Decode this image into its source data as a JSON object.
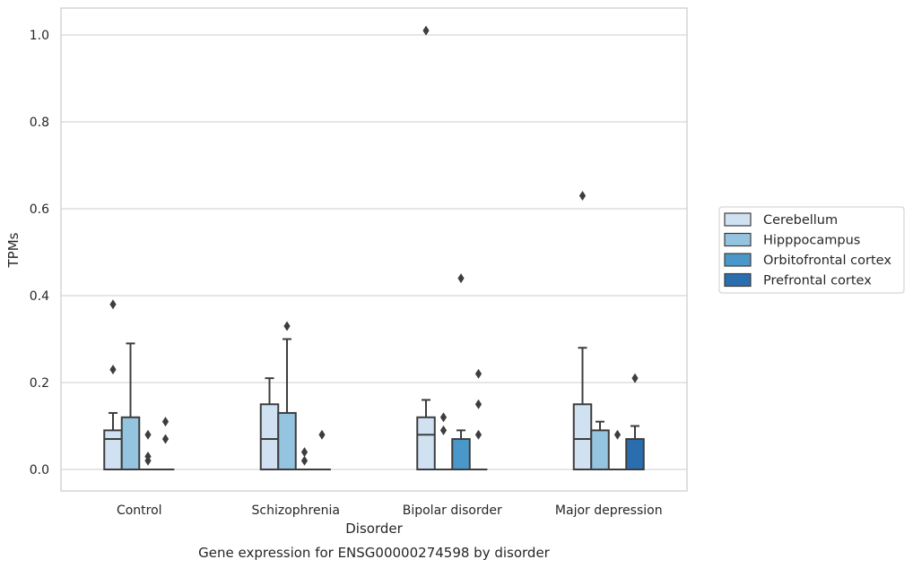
{
  "chart_data": {
    "type": "box",
    "title": "Gene expression for ENSG00000274598 by disorder",
    "xlabel": "Disorder",
    "ylabel": "TPMs",
    "ylim": [
      -0.05,
      1.06
    ],
    "yticks": [
      "0.0",
      "0.2",
      "0.4",
      "0.6",
      "0.8",
      "1.0"
    ],
    "grid": true,
    "legend_position": "right",
    "categories": [
      "Control",
      "Schizophrenia",
      "Bipolar disorder",
      "Major depression"
    ],
    "series": [
      {
        "name": "Cerebellum",
        "color": "#d0e1f2",
        "boxes": [
          {
            "q1": 0.0,
            "median": 0.07,
            "q3": 0.09,
            "whisker_low": 0.0,
            "whisker_high": 0.13,
            "outliers": [
              0.23,
              0.38
            ]
          },
          {
            "q1": 0.0,
            "median": 0.07,
            "q3": 0.15,
            "whisker_low": 0.0,
            "whisker_high": 0.21,
            "outliers": []
          },
          {
            "q1": 0.0,
            "median": 0.08,
            "q3": 0.12,
            "whisker_low": 0.0,
            "whisker_high": 0.16,
            "outliers": [
              1.01
            ]
          },
          {
            "q1": 0.0,
            "median": 0.07,
            "q3": 0.15,
            "whisker_low": 0.0,
            "whisker_high": 0.28,
            "outliers": [
              0.63
            ]
          }
        ]
      },
      {
        "name": "Hipppocampus",
        "color": "#94c4df",
        "boxes": [
          {
            "q1": 0.0,
            "median": 0.0,
            "q3": 0.12,
            "whisker_low": 0.0,
            "whisker_high": 0.29,
            "outliers": []
          },
          {
            "q1": 0.0,
            "median": 0.0,
            "q3": 0.13,
            "whisker_low": 0.0,
            "whisker_high": 0.3,
            "outliers": [
              0.33
            ]
          },
          {
            "q1": 0.0,
            "median": 0.0,
            "q3": 0.0,
            "whisker_low": 0.0,
            "whisker_high": 0.0,
            "outliers": [
              0.09,
              0.12
            ]
          },
          {
            "q1": 0.0,
            "median": 0.0,
            "q3": 0.09,
            "whisker_low": 0.0,
            "whisker_high": 0.11,
            "outliers": []
          }
        ]
      },
      {
        "name": "Orbitofrontal cortex",
        "color": "#4a98c9",
        "boxes": [
          {
            "q1": 0.0,
            "median": 0.0,
            "q3": 0.0,
            "whisker_low": 0.0,
            "whisker_high": 0.0,
            "outliers": [
              0.02,
              0.03,
              0.08
            ]
          },
          {
            "q1": 0.0,
            "median": 0.0,
            "q3": 0.0,
            "whisker_low": 0.0,
            "whisker_high": 0.0,
            "outliers": [
              0.02,
              0.04
            ]
          },
          {
            "q1": 0.0,
            "median": 0.0,
            "q3": 0.07,
            "whisker_low": 0.0,
            "whisker_high": 0.09,
            "outliers": [
              0.44
            ]
          },
          {
            "q1": 0.0,
            "median": 0.0,
            "q3": 0.0,
            "whisker_low": 0.0,
            "whisker_high": 0.0,
            "outliers": [
              0.08
            ]
          }
        ]
      },
      {
        "name": "Prefrontal cortex",
        "color": "#2a6eb0",
        "boxes": [
          {
            "q1": 0.0,
            "median": 0.0,
            "q3": 0.0,
            "whisker_low": 0.0,
            "whisker_high": 0.0,
            "outliers": [
              0.07,
              0.11
            ]
          },
          {
            "q1": 0.0,
            "median": 0.0,
            "q3": 0.0,
            "whisker_low": 0.0,
            "whisker_high": 0.0,
            "outliers": [
              0.08
            ]
          },
          {
            "q1": 0.0,
            "median": 0.0,
            "q3": 0.0,
            "whisker_low": 0.0,
            "whisker_high": 0.0,
            "outliers": [
              0.08,
              0.15,
              0.22
            ]
          },
          {
            "q1": 0.0,
            "median": 0.0,
            "q3": 0.07,
            "whisker_low": 0.0,
            "whisker_high": 0.1,
            "outliers": [
              0.21
            ]
          }
        ]
      }
    ]
  }
}
